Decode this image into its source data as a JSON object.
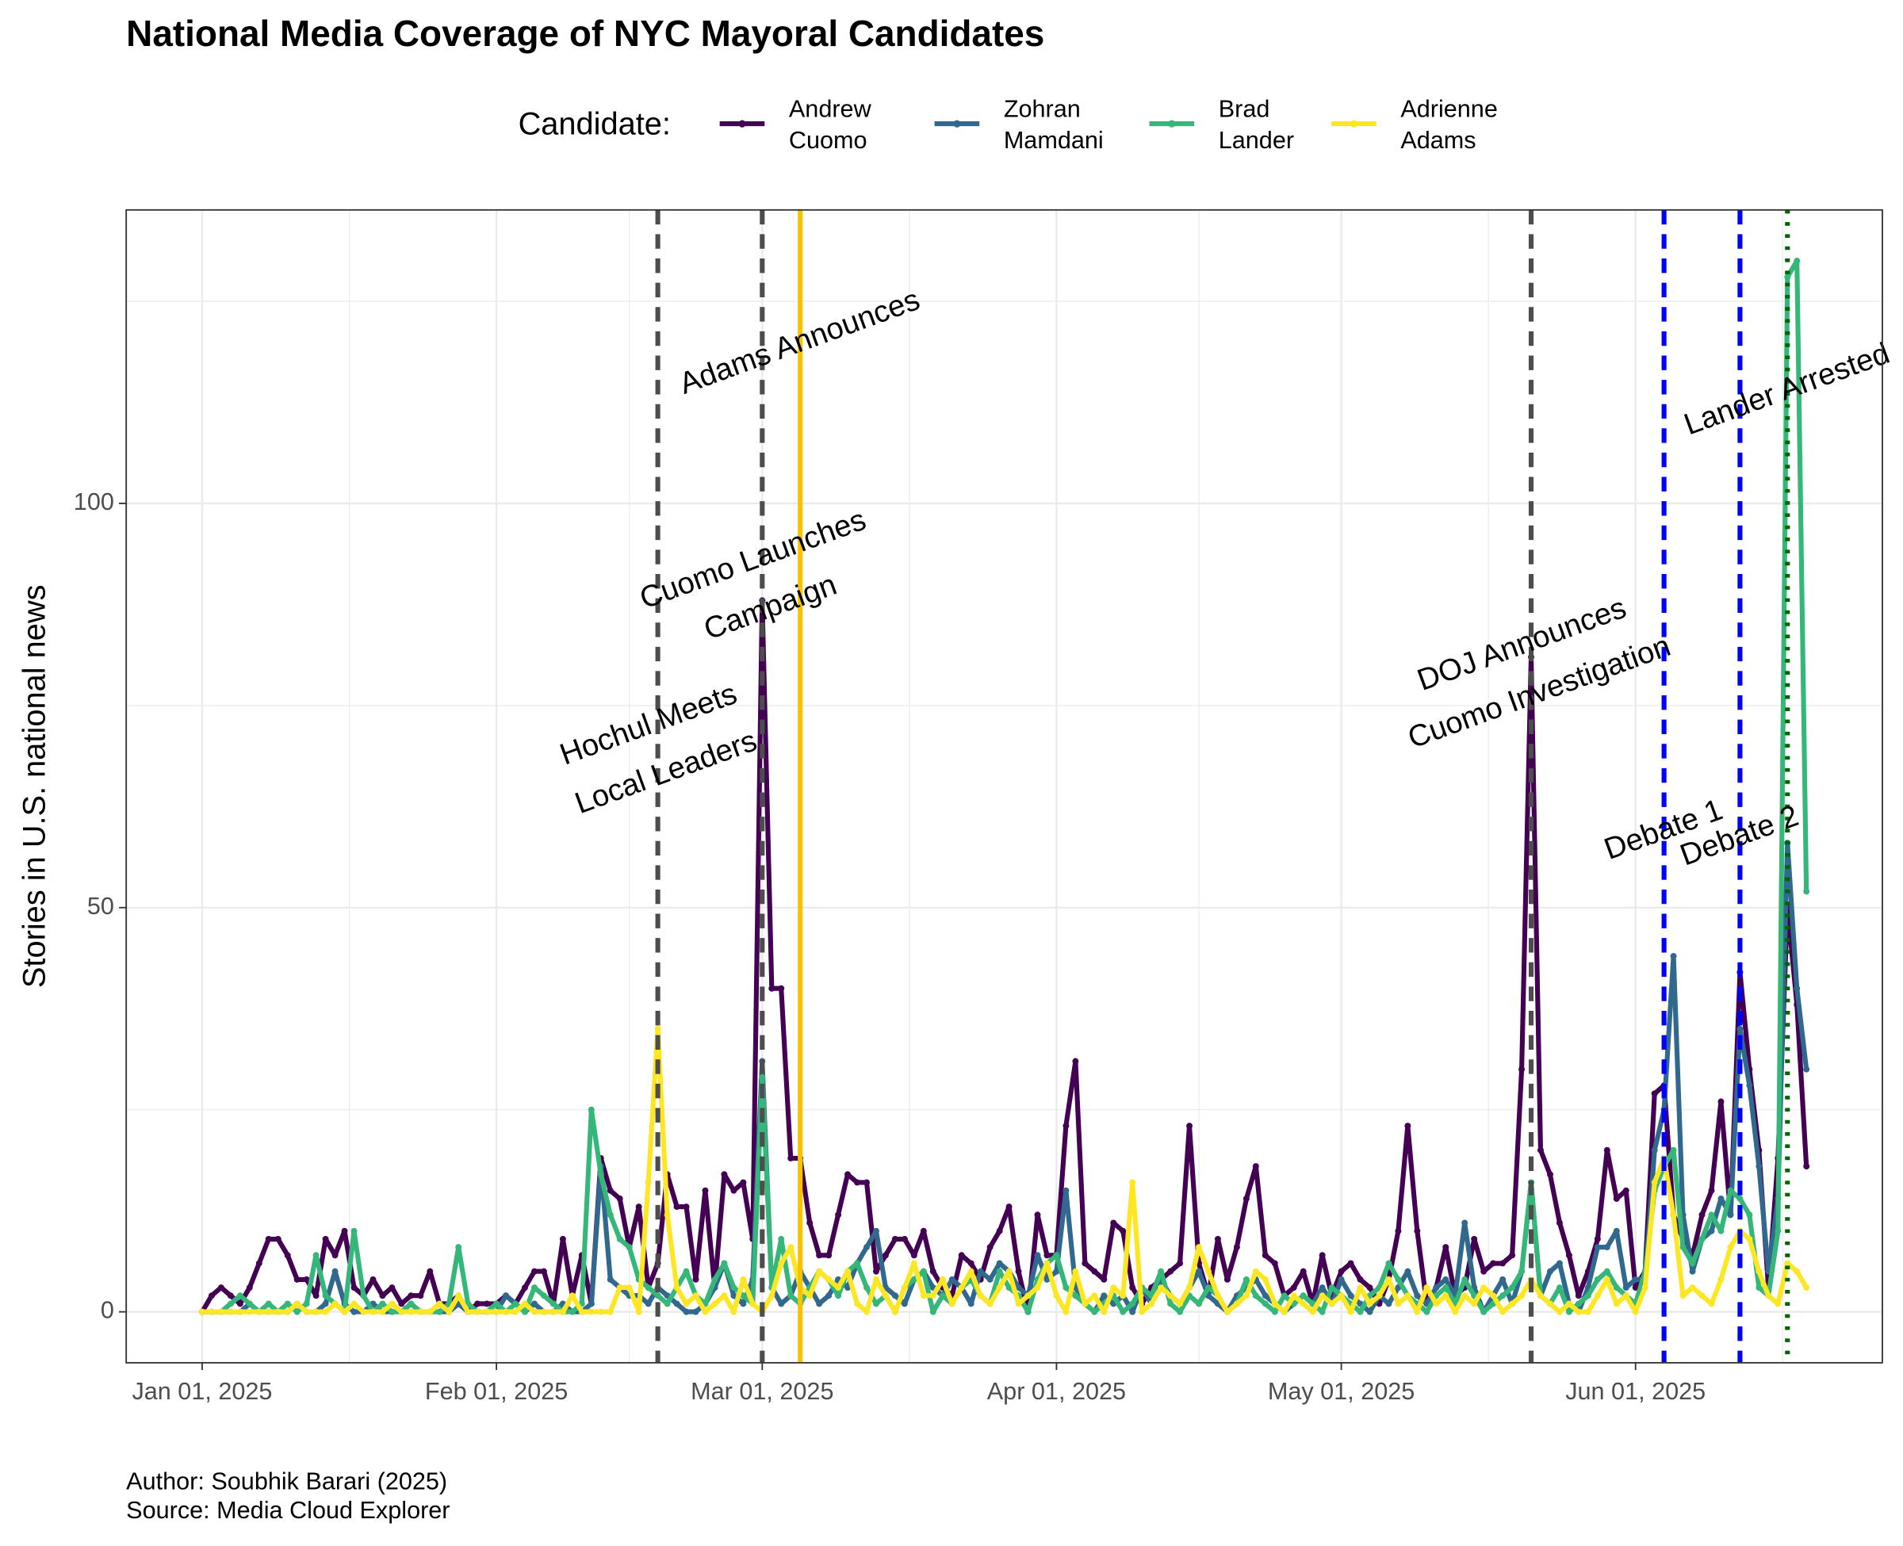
{
  "chart_data": {
    "type": "line",
    "title": "National Media Coverage of NYC Mayoral Candidates",
    "ylabel": "Stories in U.S. national news",
    "caption": [
      "Author: Soubhik Barari (2025)",
      "Source: Media Cloud Explorer"
    ],
    "legend_title": "Candidate:",
    "legend_position": "top",
    "grid": true,
    "xlim": [
      "2024-12-24",
      "2025-06-27"
    ],
    "xticks": [
      {
        "value": "2025-01-01",
        "label": "Jan 01, 2025"
      },
      {
        "value": "2025-02-01",
        "label": "Feb 01, 2025"
      },
      {
        "value": "2025-03-01",
        "label": "Mar 01, 2025"
      },
      {
        "value": "2025-04-01",
        "label": "Apr 01, 2025"
      },
      {
        "value": "2025-05-01",
        "label": "May 01, 2025"
      },
      {
        "value": "2025-06-01",
        "label": "Jun 01, 2025"
      }
    ],
    "ylim": [
      -6.3,
      136.3
    ],
    "yticks": [
      0,
      50,
      100
    ],
    "x": [
      "2025-01-01",
      "2025-01-02",
      "2025-01-03",
      "2025-01-04",
      "2025-01-05",
      "2025-01-06",
      "2025-01-07",
      "2025-01-08",
      "2025-01-09",
      "2025-01-10",
      "2025-01-11",
      "2025-01-12",
      "2025-01-13",
      "2025-01-14",
      "2025-01-15",
      "2025-01-16",
      "2025-01-17",
      "2025-01-18",
      "2025-01-19",
      "2025-01-20",
      "2025-01-21",
      "2025-01-22",
      "2025-01-23",
      "2025-01-24",
      "2025-01-25",
      "2025-01-26",
      "2025-01-27",
      "2025-01-28",
      "2025-01-29",
      "2025-01-30",
      "2025-01-31",
      "2025-02-01",
      "2025-02-02",
      "2025-02-03",
      "2025-02-04",
      "2025-02-05",
      "2025-02-06",
      "2025-02-07",
      "2025-02-08",
      "2025-02-09",
      "2025-02-10",
      "2025-02-11",
      "2025-02-12",
      "2025-02-13",
      "2025-02-14",
      "2025-02-15",
      "2025-02-16",
      "2025-02-17",
      "2025-02-18",
      "2025-02-19",
      "2025-02-20",
      "2025-02-21",
      "2025-02-22",
      "2025-02-23",
      "2025-02-24",
      "2025-02-25",
      "2025-02-26",
      "2025-02-27",
      "2025-02-28",
      "2025-03-01",
      "2025-03-02",
      "2025-03-03",
      "2025-03-04",
      "2025-03-05",
      "2025-03-06",
      "2025-03-07",
      "2025-03-08",
      "2025-03-09",
      "2025-03-10",
      "2025-03-11",
      "2025-03-12",
      "2025-03-13",
      "2025-03-14",
      "2025-03-15",
      "2025-03-16",
      "2025-03-17",
      "2025-03-18",
      "2025-03-19",
      "2025-03-20",
      "2025-03-21",
      "2025-03-22",
      "2025-03-23",
      "2025-03-24",
      "2025-03-25",
      "2025-03-26",
      "2025-03-27",
      "2025-03-28",
      "2025-03-29",
      "2025-03-30",
      "2025-03-31",
      "2025-04-01",
      "2025-04-02",
      "2025-04-03",
      "2025-04-04",
      "2025-04-05",
      "2025-04-06",
      "2025-04-07",
      "2025-04-08",
      "2025-04-09",
      "2025-04-10",
      "2025-04-11",
      "2025-04-12",
      "2025-04-13",
      "2025-04-14",
      "2025-04-15",
      "2025-04-16",
      "2025-04-17",
      "2025-04-18",
      "2025-04-19",
      "2025-04-20",
      "2025-04-21",
      "2025-04-22",
      "2025-04-23",
      "2025-04-24",
      "2025-04-25",
      "2025-04-26",
      "2025-04-27",
      "2025-04-28",
      "2025-04-29",
      "2025-04-30",
      "2025-05-01",
      "2025-05-02",
      "2025-05-03",
      "2025-05-04",
      "2025-05-05",
      "2025-05-06",
      "2025-05-07",
      "2025-05-08",
      "2025-05-09",
      "2025-05-10",
      "2025-05-11",
      "2025-05-12",
      "2025-05-13",
      "2025-05-14",
      "2025-05-15",
      "2025-05-16",
      "2025-05-17",
      "2025-05-18",
      "2025-05-19",
      "2025-05-20",
      "2025-05-21",
      "2025-05-22",
      "2025-05-23",
      "2025-05-24",
      "2025-05-25",
      "2025-05-26",
      "2025-05-27",
      "2025-05-28",
      "2025-05-29",
      "2025-05-30",
      "2025-05-31",
      "2025-06-01",
      "2025-06-02",
      "2025-06-03",
      "2025-06-04",
      "2025-06-05",
      "2025-06-06",
      "2025-06-07",
      "2025-06-08",
      "2025-06-09",
      "2025-06-10",
      "2025-06-11",
      "2025-06-12",
      "2025-06-13",
      "2025-06-14",
      "2025-06-15",
      "2025-06-16",
      "2025-06-17",
      "2025-06-18",
      "2025-06-19"
    ],
    "series": [
      {
        "name": "Andrew\nCuomo",
        "color": "#440154",
        "values": [
          0,
          2,
          3,
          2,
          1,
          3,
          6,
          9,
          9,
          7,
          4,
          4,
          2,
          9,
          7,
          10,
          3,
          2,
          4,
          2,
          3,
          1,
          2,
          2,
          5,
          1,
          1,
          2,
          0,
          1,
          1,
          1,
          2,
          1,
          3,
          5,
          5,
          1,
          9,
          2,
          7,
          1,
          19,
          15,
          14,
          8,
          13,
          3,
          6,
          17,
          13,
          13,
          4,
          15,
          3,
          17,
          15,
          16,
          9,
          88,
          40,
          40,
          19,
          19,
          11,
          7,
          7,
          12,
          17,
          16,
          16,
          5,
          7,
          9,
          9,
          7,
          10,
          5,
          3,
          2,
          7,
          6,
          4,
          8,
          10,
          13,
          5,
          0,
          12,
          7,
          7,
          23,
          31,
          6,
          5,
          4,
          11,
          10,
          3,
          1,
          3,
          4,
          5,
          6,
          23,
          6,
          2,
          9,
          4,
          8,
          14,
          18,
          7,
          6,
          2,
          3,
          5,
          1,
          7,
          2,
          5,
          6,
          4,
          3,
          1,
          4,
          10,
          23,
          10,
          1,
          3,
          8,
          2,
          3,
          9,
          5,
          6,
          6,
          7,
          30,
          81,
          20,
          17,
          11,
          7,
          2,
          5,
          9,
          20,
          14,
          15,
          3,
          5,
          27,
          28,
          12,
          9,
          7,
          12,
          15,
          26,
          12,
          42,
          30,
          20,
          3,
          19,
          50,
          38,
          18
        ]
      },
      {
        "name": "Zohran\nMamdani",
        "color": "#31688e",
        "values": [
          0,
          0,
          0,
          0,
          0,
          1,
          0,
          0,
          0,
          0,
          1,
          0,
          0,
          1,
          5,
          1,
          0,
          0,
          1,
          0,
          0,
          0,
          1,
          0,
          0,
          0,
          0,
          1,
          0,
          0,
          0,
          0,
          2,
          1,
          0,
          1,
          0,
          0,
          1,
          0,
          0,
          1,
          18,
          4,
          3,
          2,
          2,
          1,
          3,
          2,
          1,
          0,
          0,
          1,
          3,
          6,
          2,
          1,
          4,
          31,
          3,
          1,
          2,
          5,
          3,
          1,
          2,
          4,
          3,
          6,
          8,
          10,
          3,
          2,
          1,
          4,
          5,
          3,
          2,
          4,
          3,
          1,
          5,
          4,
          6,
          5,
          3,
          2,
          7,
          4,
          5,
          15,
          3,
          1,
          0,
          2,
          1,
          2,
          0,
          3,
          1,
          4,
          2,
          1,
          3,
          5,
          2,
          1,
          0,
          2,
          3,
          4,
          2,
          1,
          0,
          1,
          2,
          1,
          3,
          1,
          4,
          2,
          1,
          0,
          2,
          1,
          3,
          5,
          2,
          1,
          3,
          4,
          2,
          11,
          3,
          0,
          2,
          4,
          1,
          5,
          16,
          2,
          5,
          6,
          1,
          0,
          3,
          8,
          8,
          10,
          3,
          4,
          4,
          20,
          25,
          44,
          12,
          5,
          9,
          10,
          14,
          12,
          35,
          28,
          18,
          5,
          14,
          58,
          40,
          30
        ]
      },
      {
        "name": "Brad\nLander",
        "color": "#35b779",
        "values": [
          0,
          0,
          0,
          1,
          2,
          1,
          0,
          1,
          0,
          1,
          0,
          1,
          7,
          2,
          1,
          0,
          10,
          2,
          0,
          1,
          0,
          0,
          1,
          0,
          0,
          0,
          1,
          8,
          1,
          0,
          0,
          1,
          0,
          1,
          0,
          3,
          2,
          1,
          0,
          0,
          1,
          25,
          17,
          12,
          9,
          8,
          4,
          3,
          2,
          1,
          3,
          5,
          2,
          1,
          4,
          6,
          3,
          2,
          1,
          29,
          3,
          9,
          2,
          1,
          3,
          5,
          4,
          2,
          5,
          6,
          3,
          1,
          2,
          0,
          3,
          4,
          5,
          0,
          2,
          1,
          3,
          4,
          2,
          1,
          5,
          3,
          2,
          0,
          4,
          6,
          7,
          3,
          2,
          1,
          0,
          1,
          2,
          0,
          1,
          3,
          2,
          5,
          1,
          0,
          2,
          1,
          3,
          2,
          0,
          1,
          4,
          2,
          1,
          0,
          2,
          1,
          2,
          1,
          0,
          3,
          2,
          1,
          0,
          2,
          3,
          6,
          4,
          2,
          1,
          0,
          2,
          3,
          1,
          4,
          2,
          0,
          1,
          2,
          3,
          5,
          16,
          2,
          1,
          3,
          0,
          1,
          2,
          4,
          5,
          3,
          2,
          1,
          5,
          15,
          18,
          20,
          8,
          6,
          9,
          12,
          10,
          15,
          14,
          12,
          3,
          2,
          10,
          128,
          130,
          52
        ]
      },
      {
        "name": "Adrienne\nAdams",
        "color": "#fde725",
        "values": [
          0,
          0,
          0,
          0,
          0,
          0,
          0,
          0,
          0,
          0,
          1,
          0,
          0,
          0,
          1,
          0,
          1,
          0,
          0,
          0,
          1,
          0,
          0,
          0,
          0,
          1,
          0,
          2,
          0,
          0,
          0,
          0,
          0,
          0,
          1,
          0,
          0,
          0,
          0,
          2,
          0,
          0,
          0,
          0,
          3,
          3,
          0,
          16,
          35,
          12,
          3,
          1,
          2,
          0,
          1,
          2,
          0,
          4,
          1,
          0,
          2,
          6,
          8,
          3,
          2,
          5,
          4,
          3,
          5,
          1,
          0,
          4,
          2,
          0,
          3,
          6,
          2,
          2,
          4,
          1,
          3,
          5,
          2,
          1,
          3,
          5,
          1,
          2,
          3,
          6,
          2,
          0,
          5,
          1,
          2,
          0,
          3,
          2,
          16,
          0,
          1,
          3,
          2,
          1,
          3,
          8,
          5,
          2,
          0,
          1,
          2,
          5,
          4,
          1,
          0,
          2,
          1,
          0,
          2,
          1,
          2,
          0,
          3,
          1,
          2,
          4,
          1,
          2,
          0,
          3,
          1,
          2,
          0,
          2,
          1,
          3,
          2,
          0,
          1,
          2,
          4,
          2,
          1,
          0,
          1,
          0,
          0,
          2,
          4,
          1,
          2,
          0,
          3,
          16,
          19,
          12,
          2,
          3,
          2,
          1,
          4,
          8,
          10,
          9,
          5,
          2,
          1,
          6,
          5,
          3
        ]
      }
    ],
    "annotations": [
      {
        "label": "Hochul Meets\nLocal Leaders",
        "date": "2025-02-18",
        "color": "#4d4d4d",
        "linestyle": "dashed"
      },
      {
        "label": "Cuomo Launches\nCampaign",
        "date": "2025-03-01",
        "color": "#4d4d4d",
        "linestyle": "dashed"
      },
      {
        "label": "Adams Announces",
        "date": "2025-03-05",
        "color": "#f5c400",
        "linestyle": "solid"
      },
      {
        "label": "DOJ Announces\nCuomo Investigation",
        "date": "2025-05-21",
        "color": "#4d4d4d",
        "linestyle": "dashed"
      },
      {
        "label": "Debate 1",
        "date": "2025-06-04",
        "color": "#0000ff",
        "linestyle": "dashed"
      },
      {
        "label": "Debate 2",
        "date": "2025-06-12",
        "color": "#0000ff",
        "linestyle": "dashed"
      },
      {
        "label": "Lander Arrested",
        "date": "2025-06-17",
        "color": "#006400",
        "linestyle": "dotted"
      }
    ]
  }
}
